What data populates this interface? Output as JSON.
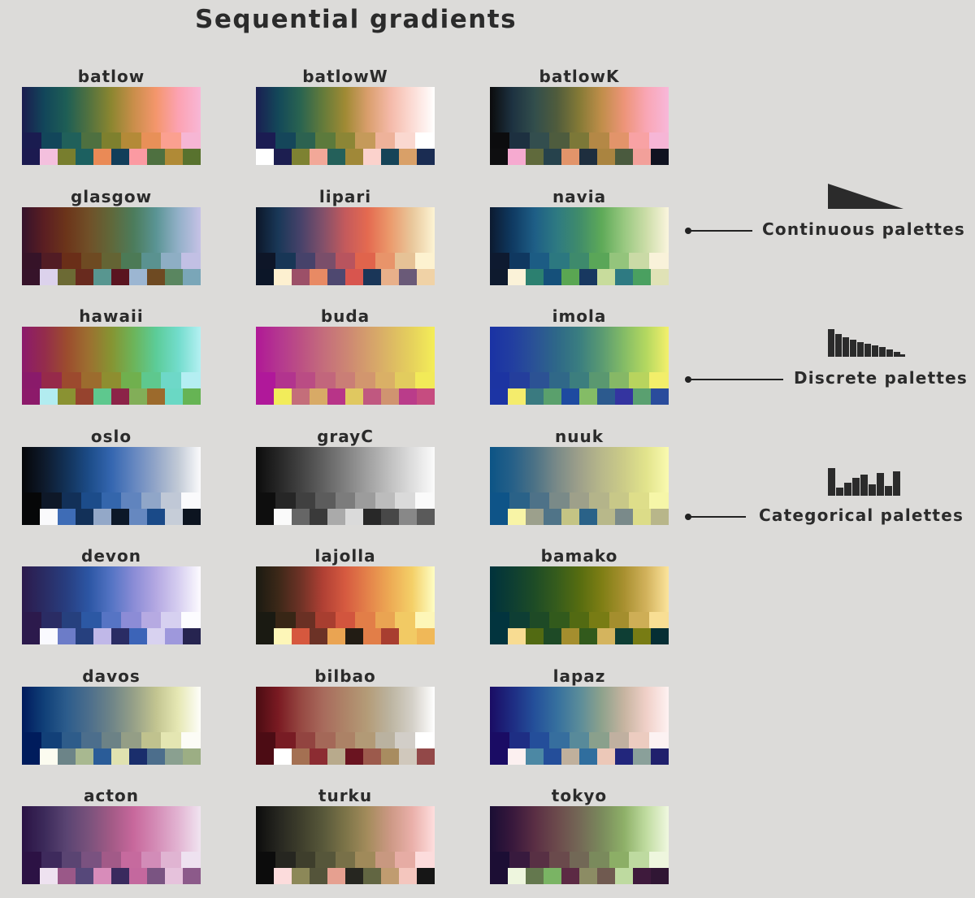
{
  "title": "Sequential gradients",
  "palettes": [
    {
      "name": "batlow",
      "continuous": [
        "#1b1c4f",
        "#12465a",
        "#1e5e55",
        "#52723f",
        "#8c8630",
        "#c98e4a",
        "#f4966c",
        "#fca2b2",
        "#f8b7d6"
      ],
      "discrete": [
        "#1a1c50",
        "#12465a",
        "#20605a",
        "#4e7040",
        "#7e802e",
        "#b48a38",
        "#e89058",
        "#fba090",
        "#f6b6d4"
      ],
      "categorical": [
        "#1c1a50",
        "#f4c0de",
        "#787e2e",
        "#1c6060",
        "#ea8a56",
        "#123e5a",
        "#fb9aa2",
        "#4e7040",
        "#b08a36",
        "#58722e"
      ]
    },
    {
      "name": "batlowW",
      "continuous": [
        "#1a1e52",
        "#134859",
        "#2a6450",
        "#647b3a",
        "#a08a34",
        "#d99e6c",
        "#f4b9a8",
        "#fcdcd5",
        "#ffffff"
      ],
      "discrete": [
        "#1b1c52",
        "#15465a",
        "#2c6250",
        "#5c7a3c",
        "#8c8636",
        "#c59a5a",
        "#eeb29a",
        "#fad8d0",
        "#ffffff"
      ],
      "categorical": [
        "#ffffff",
        "#1c1e50",
        "#7e8232",
        "#f2a898",
        "#24605a",
        "#a08838",
        "#fbd2cc",
        "#164458",
        "#d9a068",
        "#1a2c52"
      ]
    },
    {
      "name": "batlowK",
      "continuous": [
        "#0b0b0c",
        "#1d3241",
        "#324e4c",
        "#505c3c",
        "#857a36",
        "#c08e4a",
        "#ed9478",
        "#f9a6b4",
        "#f8b8da"
      ],
      "discrete": [
        "#0c0c0e",
        "#1d3040",
        "#334e4e",
        "#4e5c3e",
        "#7c7838",
        "#b48846",
        "#e2946a",
        "#f8a2a4",
        "#f6b6d6"
      ],
      "categorical": [
        "#0e0e10",
        "#f6aad0",
        "#606a3c",
        "#26424c",
        "#e2946a",
        "#1e2e3e",
        "#aa8440",
        "#4a5a3e",
        "#f2a09a",
        "#101220"
      ]
    },
    {
      "name": "glasgow",
      "continuous": [
        "#34122b",
        "#5b1e22",
        "#6c351a",
        "#705028",
        "#60683a",
        "#4c7c5c",
        "#5a9494",
        "#92b0c8",
        "#c6c2e6"
      ],
      "discrete": [
        "#361328",
        "#521c24",
        "#6a2e18",
        "#6e4a22",
        "#646434",
        "#4c7a56",
        "#5a9290",
        "#8eaec4",
        "#c2c0e4"
      ],
      "categorical": [
        "#36132a",
        "#dcd2ec",
        "#6c6a34",
        "#682a1e",
        "#589690",
        "#5a1420",
        "#9cb6d2",
        "#6e4a22",
        "#5a8660",
        "#7aa6b8"
      ]
    },
    {
      "name": "lipari",
      "continuous": [
        "#0c1628",
        "#193858",
        "#47426a",
        "#82506a",
        "#c45a5c",
        "#e46a50",
        "#eb9a6c",
        "#e9c89c",
        "#fdf4d4"
      ],
      "discrete": [
        "#0e1628",
        "#183656",
        "#46426a",
        "#7a4e6a",
        "#b8545e",
        "#e0644c",
        "#e8946a",
        "#e6c296",
        "#fdf2d0"
      ],
      "categorical": [
        "#0c1628",
        "#fdf0d0",
        "#9c5068",
        "#e88a64",
        "#4e4870",
        "#d8554e",
        "#1a3658",
        "#e8b08a",
        "#6a5a78",
        "#f0d2a6"
      ]
    },
    {
      "name": "navia",
      "continuous": [
        "#0c1a30",
        "#0f3a62",
        "#1e5e86",
        "#2e7a82",
        "#408c6a",
        "#5eaa58",
        "#98c880",
        "#ccdda8",
        "#fbf5de"
      ],
      "discrete": [
        "#0e1a30",
        "#0f3860",
        "#1c5c84",
        "#2c7880",
        "#3e8a6c",
        "#5aa658",
        "#94c47c",
        "#cadaa6",
        "#f9f2da"
      ],
      "categorical": [
        "#0e1a2e",
        "#fbf2d8",
        "#2c8070",
        "#15507a",
        "#5aa652",
        "#183860",
        "#c8dc9c",
        "#2e7a82",
        "#4aa060",
        "#e0e2b6"
      ]
    },
    {
      "name": "hawaii",
      "continuous": [
        "#8c1a6c",
        "#942c4c",
        "#9c4c2e",
        "#9c7030",
        "#869432",
        "#6cb45a",
        "#5ccc98",
        "#72dccc",
        "#b4f0f2"
      ],
      "discrete": [
        "#8a1a6a",
        "#962a4a",
        "#9c4a2e",
        "#9c6c2e",
        "#8e8e30",
        "#70b04e",
        "#5ec88e",
        "#6ed8c8",
        "#b4eef2"
      ],
      "categorical": [
        "#8c1a6a",
        "#b2ecf0",
        "#8a9232",
        "#96432e",
        "#5ec88e",
        "#8c2448",
        "#82ae58",
        "#9c6a2c",
        "#6ad8c4",
        "#66b454"
      ]
    },
    {
      "name": "buda",
      "continuous": [
        "#b01896",
        "#b43690",
        "#bc5084",
        "#c46c7c",
        "#cc8474",
        "#d49e6c",
        "#dcb864",
        "#e6d25c",
        "#f4ee58"
      ],
      "discrete": [
        "#b0189a",
        "#b2348e",
        "#ba4c84",
        "#c2667c",
        "#ca7e76",
        "#d2966e",
        "#dab066",
        "#e2cc5e",
        "#f2ea58"
      ],
      "categorical": [
        "#b0189a",
        "#f2ec5a",
        "#c46e7a",
        "#d8aa66",
        "#b83488",
        "#e0c860",
        "#c05880",
        "#d09470",
        "#ba3c8a",
        "#c64c80"
      ]
    },
    {
      "name": "imola",
      "continuous": [
        "#1a32a4",
        "#223ea0",
        "#2a5296",
        "#2e6888",
        "#3a7e80",
        "#5a9a72",
        "#84bc66",
        "#b4d860",
        "#f4f06c"
      ],
      "discrete": [
        "#1c34a2",
        "#243e9c",
        "#2c5294",
        "#306888",
        "#3c7e7e",
        "#5a9870",
        "#86b866",
        "#b8d45e",
        "#f2ee6a"
      ],
      "categorical": [
        "#1c34a4",
        "#f4ec6c",
        "#3a7a80",
        "#5aa06c",
        "#1e4aa0",
        "#84bc66",
        "#2c5a8e",
        "#3434a0",
        "#5aa070",
        "#2a4c9c"
      ]
    },
    {
      "name": "oslo",
      "continuous": [
        "#050608",
        "#0e1a2c",
        "#123258",
        "#1c4c88",
        "#3466b0",
        "#6486c0",
        "#93a6c8",
        "#c2cad6",
        "#fbfbfc"
      ],
      "discrete": [
        "#060708",
        "#0e1828",
        "#123058",
        "#1c4c8a",
        "#3466ac",
        "#6084be",
        "#90a6c8",
        "#c0c8d6",
        "#fafafc"
      ],
      "categorical": [
        "#060708",
        "#fafafc",
        "#3e6cb6",
        "#123058",
        "#93a8c8",
        "#0c1828",
        "#6688c0",
        "#1a4a88",
        "#c6cdd8",
        "#0c1420"
      ]
    },
    {
      "name": "grayC",
      "continuous": [
        "#0c0c0c",
        "#262626",
        "#424242",
        "#606060",
        "#808080",
        "#a0a0a0",
        "#c0c0c0",
        "#dedede",
        "#fbfbfb"
      ],
      "discrete": [
        "#0e0e0e",
        "#262626",
        "#404040",
        "#5c5c5c",
        "#7c7c7c",
        "#9c9c9c",
        "#bcbcbc",
        "#dadada",
        "#fafafa"
      ],
      "categorical": [
        "#0e0e0e",
        "#fafafa",
        "#666666",
        "#3a3a3a",
        "#aaaaaa",
        "#dadada",
        "#282828",
        "#484848",
        "#888888",
        "#5a5a5a"
      ]
    },
    {
      "name": "nuuk",
      "continuous": [
        "#0c5486",
        "#266088",
        "#4c7286",
        "#7a8a88",
        "#9ea08a",
        "#b8b88a",
        "#cccc88",
        "#e2e48c",
        "#fafab0"
      ],
      "discrete": [
        "#0e5488",
        "#2a6288",
        "#4e7288",
        "#7a8a88",
        "#9ea08a",
        "#b4b48a",
        "#c8c888",
        "#dede8a",
        "#f6f6a8"
      ],
      "categorical": [
        "#0e5488",
        "#f8f4a6",
        "#9ca08c",
        "#507488",
        "#c4c484",
        "#2a6288",
        "#b8b88a",
        "#7a8a8a",
        "#dcdc88",
        "#b8b68a"
      ]
    },
    {
      "name": "devon",
      "continuous": [
        "#2c1a4c",
        "#2a2c64",
        "#283e80",
        "#2c56a4",
        "#5474c4",
        "#8a8cd6",
        "#b4a8e2",
        "#d6cef0",
        "#fdfbff"
      ],
      "discrete": [
        "#2c1a4c",
        "#2a2c64",
        "#26407e",
        "#2c58a4",
        "#5674c4",
        "#8c8cd6",
        "#b6aae2",
        "#d6d0f0",
        "#fcfcff"
      ],
      "categorical": [
        "#2c1a4c",
        "#fafaff",
        "#6c7cc8",
        "#26407e",
        "#c0b8e8",
        "#2a2c64",
        "#3c64b8",
        "#d8d2f0",
        "#9e98dc",
        "#262450"
      ]
    },
    {
      "name": "lajolla",
      "continuous": [
        "#1a1a12",
        "#3c2818",
        "#6e3226",
        "#b04034",
        "#d65a40",
        "#e4824a",
        "#edaa54",
        "#f4d068",
        "#fefec4"
      ],
      "discrete": [
        "#1a1a12",
        "#382616",
        "#6a3024",
        "#a83e30",
        "#d2553e",
        "#e27e48",
        "#eaa452",
        "#f2ca64",
        "#fdf6b8"
      ],
      "categorical": [
        "#1a1a12",
        "#fdf6b8",
        "#d6583e",
        "#6c3226",
        "#eaa452",
        "#221c14",
        "#e27e48",
        "#a83e30",
        "#f2ca64",
        "#f0b858"
      ]
    },
    {
      "name": "bamako",
      "continuous": [
        "#00323c",
        "#0e3e32",
        "#1e4c26",
        "#365c1c",
        "#566c10",
        "#7e7e14",
        "#a89030",
        "#d2b25c",
        "#fce49c"
      ],
      "discrete": [
        "#02343e",
        "#0e3e34",
        "#1e4a26",
        "#325a1c",
        "#526a12",
        "#787c14",
        "#a48e2e",
        "#ceae56",
        "#f8de94"
      ],
      "categorical": [
        "#02343e",
        "#f8dc92",
        "#526a12",
        "#1e4a26",
        "#a48e2e",
        "#325a1c",
        "#d4b45e",
        "#0e3e34",
        "#787c14",
        "#062e34"
      ]
    },
    {
      "name": "davos",
      "continuous": [
        "#001a5c",
        "#104078",
        "#2c5c8c",
        "#4c6e8c",
        "#6e8488",
        "#96a088",
        "#c2c490",
        "#e6e8b4",
        "#fefefa"
      ],
      "discrete": [
        "#001c5c",
        "#124078",
        "#2e5c8a",
        "#4c6e8c",
        "#6c8286",
        "#949e86",
        "#c0c28e",
        "#e4e6b2",
        "#fcfcf6"
      ],
      "categorical": [
        "#001c5c",
        "#fcfcf0",
        "#6c8488",
        "#a8b890",
        "#2a5c98",
        "#e0e2b0",
        "#1a2e6c",
        "#4c6e8c",
        "#8aa090",
        "#9cae84"
      ]
    },
    {
      "name": "bilbao",
      "continuous": [
        "#4a0c12",
        "#7a1a22",
        "#964842",
        "#a86a5c",
        "#ae8468",
        "#b49c78",
        "#bcb4a0",
        "#d4d0c8",
        "#ffffff"
      ],
      "discrete": [
        "#4c0c14",
        "#781c24",
        "#924440",
        "#a46858",
        "#ac8266",
        "#b29a76",
        "#bab2a0",
        "#d2cec8",
        "#ffffff"
      ],
      "categorical": [
        "#4c0c14",
        "#ffffff",
        "#a47052",
        "#8c2c32",
        "#b8aa8c",
        "#6a1420",
        "#9c5a4c",
        "#a88c60",
        "#d0c8bc",
        "#924848"
      ]
    },
    {
      "name": "lapaz",
      "continuous": [
        "#1a0c64",
        "#1e2c82",
        "#24509a",
        "#36709e",
        "#5a8c9a",
        "#8ea28c",
        "#c6b4a0",
        "#f0d0c8",
        "#fef2f2"
      ],
      "discrete": [
        "#1a0c64",
        "#1e2e84",
        "#244e9a",
        "#366e9e",
        "#588a9a",
        "#8aa08c",
        "#c0b0a0",
        "#ecccc0",
        "#fcf2f2"
      ],
      "categorical": [
        "#1a0c64",
        "#fcf0f0",
        "#4c88a4",
        "#244e9a",
        "#c0b09c",
        "#306e9e",
        "#ecc8b8",
        "#22267c",
        "#8aa09a",
        "#20206c"
      ]
    },
    {
      "name": "acton",
      "continuous": [
        "#2a1244",
        "#3c2a5a",
        "#5a4472",
        "#7a527c",
        "#a25a86",
        "#c8689c",
        "#d48cb6",
        "#e2b4d2",
        "#f0e4f0"
      ],
      "discrete": [
        "#2c1244",
        "#3e2a5c",
        "#5a4472",
        "#7a5280",
        "#a25a88",
        "#c66a9e",
        "#d28cb8",
        "#e0b4d2",
        "#eee2f0"
      ],
      "categorical": [
        "#2c1244",
        "#eee2f0",
        "#9a5888",
        "#56487a",
        "#d88cba",
        "#3a2a5e",
        "#c4689e",
        "#7a5482",
        "#e6c2dc",
        "#8c5a8a"
      ]
    },
    {
      "name": "turku",
      "continuous": [
        "#0c0c0c",
        "#262620",
        "#3e3e2c",
        "#58583a",
        "#7c7448",
        "#a48c5c",
        "#cc9884",
        "#eab0aa",
        "#fedede"
      ],
      "discrete": [
        "#0c0c0c",
        "#262620",
        "#3e3e2c",
        "#56563a",
        "#787048",
        "#a08a5a",
        "#c89880",
        "#e6aca4",
        "#fcdcdc"
      ],
      "categorical": [
        "#0c0c0c",
        "#fcdcdc",
        "#8c8858",
        "#54543a",
        "#e6a090",
        "#262620",
        "#626642",
        "#c09c70",
        "#f4c6be",
        "#161616"
      ]
    },
    {
      "name": "tokyo",
      "continuous": [
        "#1a0e34",
        "#38183c",
        "#5a2e44",
        "#6c4a4c",
        "#746856",
        "#7a8a5c",
        "#8eb068",
        "#c0dca0",
        "#f0f8e0"
      ],
      "discrete": [
        "#1c0e34",
        "#381a3e",
        "#583044",
        "#6a4a4c",
        "#726856",
        "#7a8a5c",
        "#8cae66",
        "#bedaa0",
        "#eef6de"
      ],
      "categorical": [
        "#1c0e34",
        "#eef6de",
        "#64784e",
        "#7ab464",
        "#5c2a44",
        "#8c8c64",
        "#705a50",
        "#bedaa0",
        "#3e1a3c",
        "#301634"
      ]
    }
  ],
  "legend": {
    "continuous": "Continuous palettes",
    "discrete": "Discrete palettes",
    "categorical": "Categorical palettes"
  },
  "colors": {
    "background": "#dcdbd9",
    "text": "#2b2b2b",
    "icon": "#2b2b2b"
  },
  "icons": {
    "continuous": "ramp-icon",
    "discrete": "descending-bars-icon",
    "categorical": "random-bars-icon"
  }
}
